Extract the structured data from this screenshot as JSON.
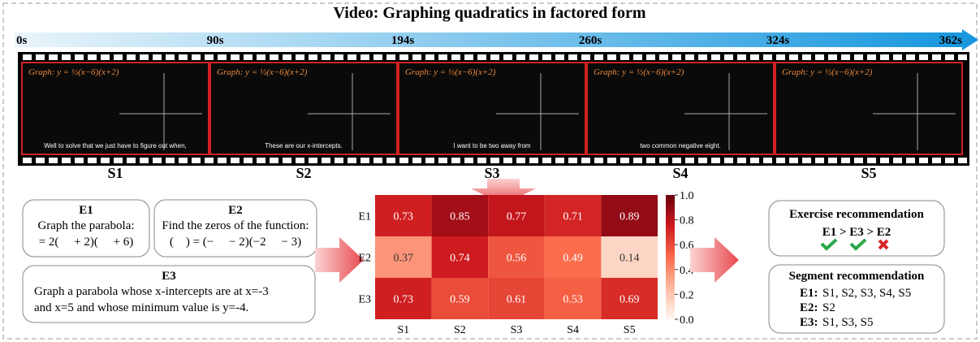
{
  "title": "Video: Graphing quadratics in factored form",
  "timeline": [
    "0s",
    "90s",
    "194s",
    "260s",
    "324s",
    "362s"
  ],
  "segments": [
    {
      "label": "S1",
      "board": "Graph: y = ½(x−6)(x+2)",
      "caption": "Well to solve that we just have to figure out when,"
    },
    {
      "label": "S2",
      "board": "Graph: y = ½(x−6)(x+2)",
      "caption": "These are our x-intercepts."
    },
    {
      "label": "S3",
      "board": "Graph: y = ½(x−6)(x+2)",
      "caption": "I want to be two away from"
    },
    {
      "label": "S4",
      "board": "Graph: y = ½(x−6)(x+2)",
      "caption": "two common negative eight."
    },
    {
      "label": "S5",
      "board": "Graph: y = ½(x−6)(x+2)",
      "caption": ""
    }
  ],
  "exercises": [
    {
      "id": "E1",
      "lines": [
        "Graph the parabola:",
        "= 2(  + 2)(  + 6)"
      ]
    },
    {
      "id": "E2",
      "lines": [
        "Find the zeros of the function:",
        "( ) = (−  − 2)(−2  − 3)"
      ]
    },
    {
      "id": "E3",
      "lines": [
        "Graph a parabola whose x-intercepts are at x=-3",
        "and x=5 and whose minimum value is y=-4."
      ]
    }
  ],
  "heatmap": {
    "rows": [
      "E1",
      "E2",
      "E3"
    ],
    "cols": [
      "S1",
      "S2",
      "S3",
      "S4",
      "S5"
    ],
    "values": [
      [
        0.73,
        0.85,
        0.77,
        0.71,
        0.89
      ],
      [
        0.37,
        0.74,
        0.56,
        0.49,
        0.14
      ],
      [
        0.73,
        0.59,
        0.61,
        0.53,
        0.69
      ]
    ],
    "clim": [
      0,
      1
    ],
    "cticks": [
      {
        "value": 0,
        "label": "0.0"
      },
      0.2,
      0.4,
      0.6,
      0.8,
      {
        "value": 1,
        "label": "1.0"
      }
    ]
  },
  "exercise_recommendation": {
    "title": "Exercise recommendation",
    "ranking": "E1 > E3 > E2"
  },
  "segment_recommendation": {
    "title": "Segment recommendation",
    "rows": [
      {
        "key": "E1:",
        "value": "S1, S2, S3, S4, S5"
      },
      {
        "key": "E2:",
        "value": "S2"
      },
      {
        "key": "E3:",
        "value": "S1, S3, S5"
      }
    ]
  }
}
